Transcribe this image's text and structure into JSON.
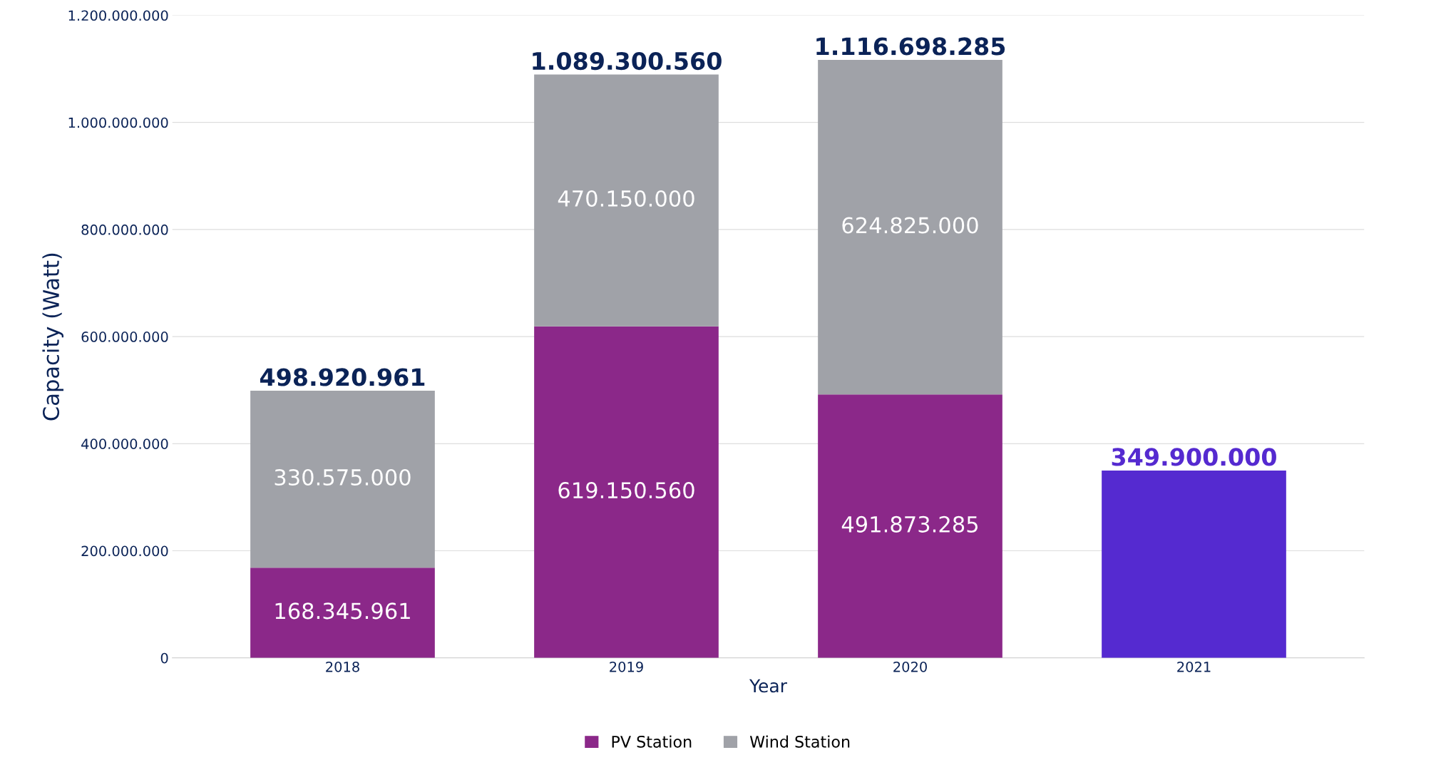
{
  "chart_data": {
    "type": "bar",
    "stacked": true,
    "xlabel": "Year",
    "ylabel": "Capacity (Watt)",
    "categories": [
      "2018",
      "2019",
      "2020",
      "2021"
    ],
    "series": [
      {
        "name": "PV Station",
        "color": "#8b2889",
        "values": [
          168345961,
          619150560,
          491873285,
          null
        ],
        "value_labels": [
          "168.345.961",
          "619.150.560",
          "491.873.285",
          null
        ]
      },
      {
        "name": "Wind Station",
        "color": "#a0a2a8",
        "values": [
          330575000,
          470150000,
          624825000,
          null
        ],
        "value_labels": [
          "330.575.000",
          "470.150.000",
          "624.825.000",
          null
        ]
      },
      {
        "color": "#552ad0",
        "values": [
          null,
          null,
          null,
          349900000
        ],
        "value_labels": [
          null,
          null,
          null,
          "349.900.000"
        ]
      }
    ],
    "totals": [
      "498.920.961",
      "1.089.300.560",
      "1.116.698.285",
      null
    ],
    "ylim": [
      0,
      1200000000
    ],
    "yticks": [
      {
        "value": 0,
        "label": "0"
      },
      {
        "value": 200000000,
        "label": "200.000.000"
      },
      {
        "value": 400000000,
        "label": "400.000.000"
      },
      {
        "value": 600000000,
        "label": "600.000.000"
      },
      {
        "value": 800000000,
        "label": "800.000.000"
      },
      {
        "value": 1000000000,
        "label": "1.000.000.000"
      },
      {
        "value": 1200000000,
        "label": "1.200.000.000"
      }
    ],
    "grid": "y",
    "legend": "bottom"
  }
}
